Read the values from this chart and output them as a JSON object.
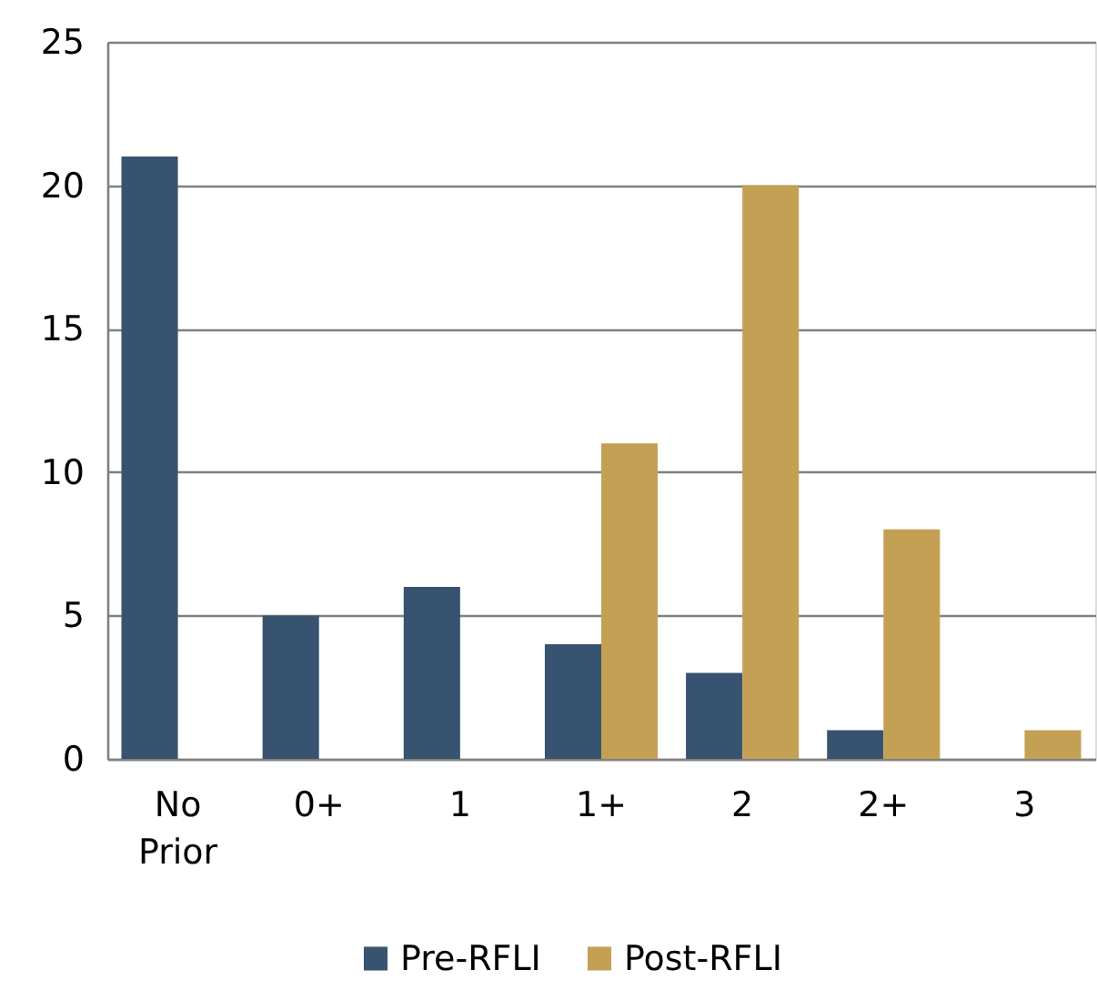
{
  "chart_data": {
    "type": "bar",
    "categories": [
      "No Prior",
      "0+",
      "1",
      "1+",
      "2",
      "2+",
      "3"
    ],
    "series": [
      {
        "name": "Pre-RFLI",
        "color": "#37536f",
        "values": [
          21,
          5,
          6,
          4,
          3,
          1,
          null
        ]
      },
      {
        "name": "Post-RFLI",
        "color": "#c4a055",
        "values": [
          null,
          null,
          null,
          11,
          20,
          8,
          1
        ]
      }
    ],
    "ylim": [
      0,
      25
    ],
    "yticks": [
      0,
      5,
      10,
      15,
      20,
      25
    ],
    "grid": "y",
    "legend": "bottom"
  }
}
